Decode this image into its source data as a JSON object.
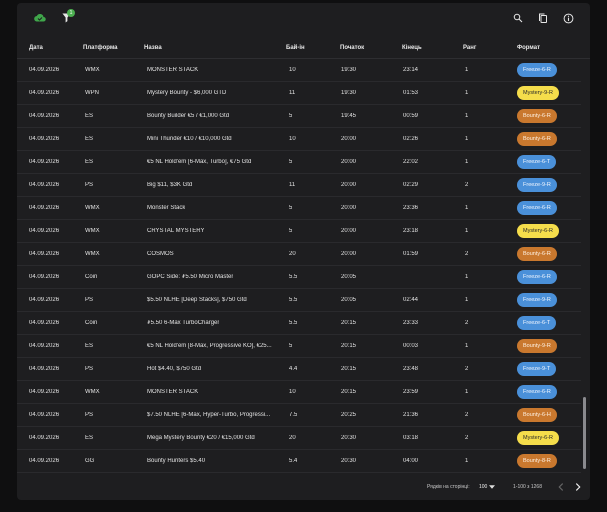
{
  "columns": [
    "Дата",
    "Платформа",
    "Назва",
    "Бай-ін",
    "Початок",
    "Кінець",
    "Ранг",
    "Формат"
  ],
  "toolbar": {
    "filter_badge": "1"
  },
  "rows": [
    {
      "date": "04.09.2026",
      "platform": "WMX",
      "name": "MONSTER STACK",
      "buyin": "10",
      "start": "19:30",
      "end": "23:14",
      "rank": "1",
      "format": "Freeze-6-R",
      "type": "freeze"
    },
    {
      "date": "04.09.2026",
      "platform": "WPN",
      "name": "Mystery Bounty - $6,000 GTD",
      "buyin": "11",
      "start": "19:30",
      "end": "01:53",
      "rank": "1",
      "format": "Mystery-9-R",
      "type": "mystery"
    },
    {
      "date": "04.09.2026",
      "platform": "ES",
      "name": "Bounty Builder €5 / €1,000 Gtd",
      "buyin": "5",
      "start": "19:45",
      "end": "00:59",
      "rank": "1",
      "format": "Bounty-6-R",
      "type": "bounty"
    },
    {
      "date": "04.09.2026",
      "platform": "ES",
      "name": "Mini Thunder €10 / €10,000 Gtd",
      "buyin": "10",
      "start": "20:00",
      "end": "02:26",
      "rank": "1",
      "format": "Bounty-6-R",
      "type": "bounty"
    },
    {
      "date": "04.09.2026",
      "platform": "ES",
      "name": "€5 NL Hold'em [6-Max, Turbo], €75 Gtd",
      "buyin": "5",
      "start": "20:00",
      "end": "22:02",
      "rank": "1",
      "format": "Freeze-6-T",
      "type": "freeze"
    },
    {
      "date": "04.09.2026",
      "platform": "PS",
      "name": "Big $11, $3K Gtd",
      "buyin": "11",
      "start": "20:00",
      "end": "02:29",
      "rank": "2",
      "format": "Freeze-9-R",
      "type": "freeze"
    },
    {
      "date": "04.09.2026",
      "platform": "WMX",
      "name": "Monster Stack",
      "buyin": "5",
      "start": "20:00",
      "end": "23:36",
      "rank": "1",
      "format": "Freeze-6-R",
      "type": "freeze"
    },
    {
      "date": "04.09.2026",
      "platform": "WMX",
      "name": "CRYSTAL MYSTERY",
      "buyin": "5",
      "start": "20:00",
      "end": "23:18",
      "rank": "1",
      "format": "Mystery-6-R",
      "type": "mystery"
    },
    {
      "date": "04.09.2026",
      "platform": "WMX",
      "name": "COSMOS",
      "buyin": "20",
      "start": "20:00",
      "end": "01:59",
      "rank": "2",
      "format": "Bounty-6-R",
      "type": "bounty"
    },
    {
      "date": "04.09.2026",
      "platform": "Coin",
      "name": "GOPC Side: ₮5.50 Micro Master",
      "buyin": "5.5",
      "start": "20:05",
      "end": "",
      "rank": "1",
      "format": "Freeze-6-R",
      "type": "freeze"
    },
    {
      "date": "04.09.2026",
      "platform": "PS",
      "name": "$5.50 NLHE [Deep Stacks], $750 Gtd",
      "buyin": "5.5",
      "start": "20:05",
      "end": "02:44",
      "rank": "1",
      "format": "Freeze-9-R",
      "type": "freeze"
    },
    {
      "date": "04.09.2026",
      "platform": "Coin",
      "name": "₮5.50 6-Max TurboCharger",
      "buyin": "5.5",
      "start": "20:15",
      "end": "23:33",
      "rank": "2",
      "format": "Freeze-6-T",
      "type": "freeze"
    },
    {
      "date": "04.09.2026",
      "platform": "ES",
      "name": "€5 NL Hold'em [8-Max, Progressive KO], €25...",
      "buyin": "5",
      "start": "20:15",
      "end": "00:03",
      "rank": "1",
      "format": "Bounty-9-R",
      "type": "bounty"
    },
    {
      "date": "04.09.2026",
      "platform": "PS",
      "name": "Hot $4.40, $750 Gtd",
      "buyin": "4.4",
      "start": "20:15",
      "end": "23:48",
      "rank": "2",
      "format": "Freeze-9-T",
      "type": "freeze"
    },
    {
      "date": "04.09.2026",
      "platform": "WMX",
      "name": "MONSTER STACK",
      "buyin": "10",
      "start": "20:15",
      "end": "23:59",
      "rank": "1",
      "format": "Freeze-6-R",
      "type": "freeze"
    },
    {
      "date": "04.09.2026",
      "platform": "PS",
      "name": "$7.50 NLHE [6-Max, Hyper-Turbo, Progressi...",
      "buyin": "7.5",
      "start": "20:25",
      "end": "21:36",
      "rank": "2",
      "format": "Bounty-6-H",
      "type": "bounty"
    },
    {
      "date": "04.09.2026",
      "platform": "ES",
      "name": "Mega Mystery Bounty €20 / €15,000 Gtd",
      "buyin": "20",
      "start": "20:30",
      "end": "03:18",
      "rank": "2",
      "format": "Mystery-6-R",
      "type": "mystery"
    },
    {
      "date": "04.09.2026",
      "platform": "GG",
      "name": "Bounty Hunters $5.40",
      "buyin": "5.4",
      "start": "20:30",
      "end": "04:00",
      "rank": "1",
      "format": "Bounty-8-R",
      "type": "bounty"
    }
  ],
  "footer": {
    "rows_per_page_label": "Рядків на сторінці:",
    "rows_per_page_value": "100",
    "range": "1-100 з 1268"
  }
}
